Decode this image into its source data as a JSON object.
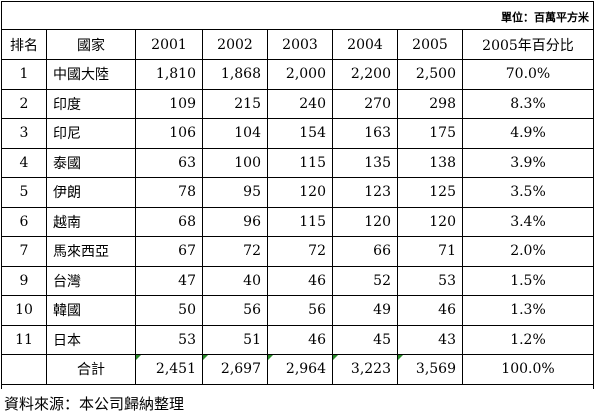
{
  "unit": "單位：百萬平方米",
  "table": {
    "header": [
      "排名",
      "國家",
      "2001",
      "2002",
      "2003",
      "2004",
      "2005",
      "2005年百分比"
    ],
    "rows": [
      [
        "1",
        "中國大陸",
        "1,810",
        "1,868",
        "2,000",
        "2,200",
        "2,500",
        "70.0%"
      ],
      [
        "2",
        "印度",
        "109",
        "215",
        "240",
        "270",
        "298",
        "8.3%"
      ],
      [
        "3",
        "印尼",
        "106",
        "104",
        "154",
        "163",
        "175",
        "4.9%"
      ],
      [
        "4",
        "泰國",
        "63",
        "100",
        "115",
        "135",
        "138",
        "3.9%"
      ],
      [
        "5",
        "伊朗",
        "78",
        "95",
        "120",
        "123",
        "125",
        "3.5%"
      ],
      [
        "6",
        "越南",
        "68",
        "96",
        "115",
        "120",
        "120",
        "3.4%"
      ],
      [
        "7",
        "馬來西亞",
        "67",
        "72",
        "72",
        "66",
        "71",
        "2.0%"
      ],
      [
        "9",
        "台灣",
        "47",
        "40",
        "46",
        "52",
        "53",
        "1.5%"
      ],
      [
        "10",
        "韓國",
        "50",
        "56",
        "56",
        "49",
        "46",
        "1.3%"
      ],
      [
        "11",
        "日本",
        "53",
        "51",
        "46",
        "45",
        "43",
        "1.2%"
      ]
    ],
    "total": [
      "合計",
      "2,451",
      "2,697",
      "2,964",
      "3,223",
      "3,569",
      "100.0%"
    ]
  },
  "source": "資料來源：本公司歸納整理"
}
